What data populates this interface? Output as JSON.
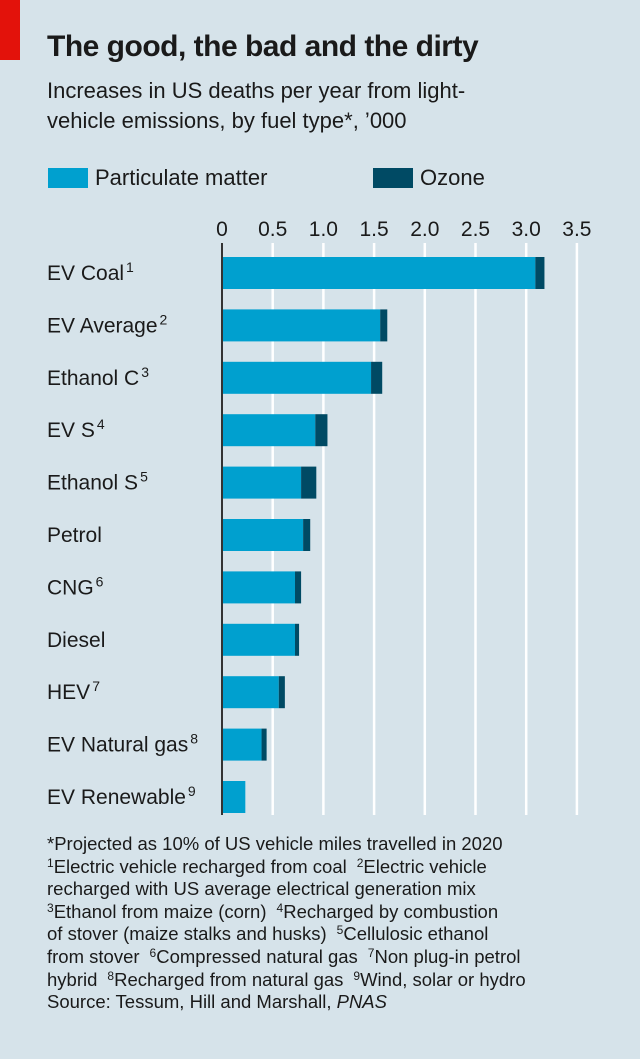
{
  "header": {
    "title": "The good, the bad and the dirty",
    "subtitle_line1": "Increases in US deaths per year from light-",
    "subtitle_line2": "vehicle emissions, by fuel type*, ’000"
  },
  "colors": {
    "particulate": "#00a0cf",
    "ozone": "#004a64",
    "background": "#d6e3ea",
    "accent": "#e3120b",
    "grid": "#ffffff",
    "axis": "#333333"
  },
  "chart_data": {
    "type": "bar",
    "orientation": "horizontal",
    "stacked": true,
    "title": "The good, the bad and the dirty",
    "xlim": [
      0,
      3.5
    ],
    "xticks": [
      "0",
      "0.5",
      "1.0",
      "1.5",
      "2.0",
      "2.5",
      "3.0",
      "3.5"
    ],
    "tick_values": [
      0,
      0.5,
      1.0,
      1.5,
      2.0,
      2.5,
      3.0,
      3.5
    ],
    "grid": true,
    "legend_position": "top",
    "categories": [
      {
        "label": "EV Coal",
        "sup": "1"
      },
      {
        "label": "EV Average",
        "sup": "2"
      },
      {
        "label": "Ethanol C",
        "sup": "3"
      },
      {
        "label": "EV S",
        "sup": "4"
      },
      {
        "label": "Ethanol S",
        "sup": "5"
      },
      {
        "label": "Petrol",
        "sup": ""
      },
      {
        "label": "CNG",
        "sup": "6"
      },
      {
        "label": "Diesel",
        "sup": ""
      },
      {
        "label": "HEV",
        "sup": "7"
      },
      {
        "label": "EV Natural gas",
        "sup": "8"
      },
      {
        "label": "EV Renewable",
        "sup": "9"
      }
    ],
    "series": [
      {
        "name": "Particulate matter",
        "values": [
          3.09,
          1.56,
          1.47,
          0.92,
          0.78,
          0.8,
          0.72,
          0.72,
          0.56,
          0.39,
          0.23
        ]
      },
      {
        "name": "Ozone",
        "values": [
          0.09,
          0.07,
          0.11,
          0.12,
          0.15,
          0.07,
          0.06,
          0.04,
          0.06,
          0.05,
          0.0
        ]
      }
    ]
  },
  "footnotes": [
    [
      {
        "t": "*Projected as 10% of US vehicle miles travelled in 2020"
      }
    ],
    [
      {
        "s": "1",
        "t": "Electric vehicle recharged from coal"
      },
      {
        "s": "2",
        "t": "Electric vehicle"
      }
    ],
    [
      {
        "t": "recharged with US average electrical generation mix"
      }
    ],
    [
      {
        "s": "3",
        "t": "Ethanol from maize (corn)"
      },
      {
        "s": "4",
        "t": "Recharged by combustion"
      }
    ],
    [
      {
        "t": "of stover (maize stalks and husks)"
      },
      {
        "s": "5",
        "t": "Cellulosic ethanol"
      }
    ],
    [
      {
        "t": "from stover"
      },
      {
        "s": "6",
        "t": "Compressed natural gas"
      },
      {
        "s": "7",
        "t": "Non plug-in petrol"
      }
    ],
    [
      {
        "t": "hybrid"
      },
      {
        "s": "8",
        "t": "Recharged from natural gas"
      },
      {
        "s": "9",
        "t": "Wind, solar or hydro"
      }
    ],
    [
      {
        "t": "Source: Tessum, Hill and Marshall, "
      },
      {
        "i": "PNAS"
      }
    ]
  ]
}
